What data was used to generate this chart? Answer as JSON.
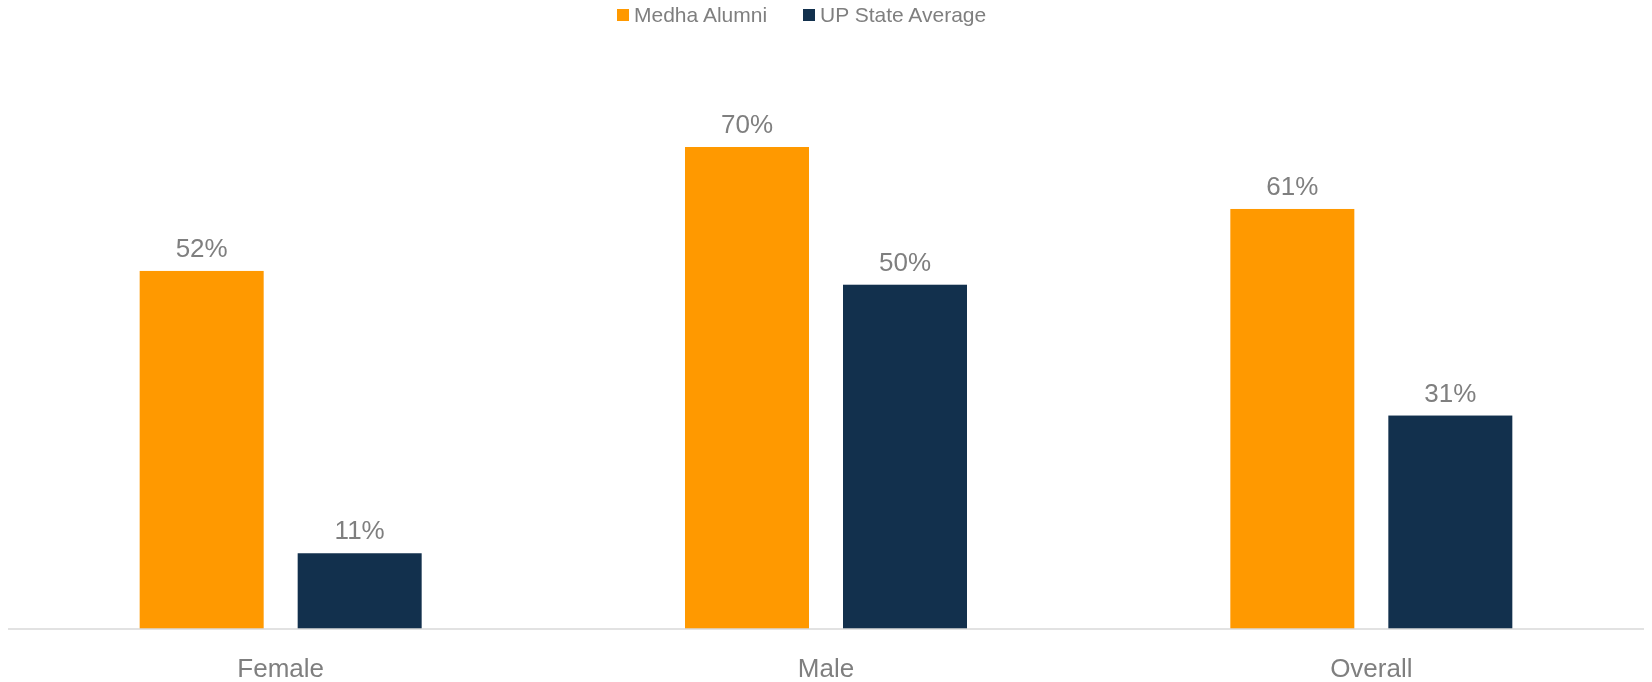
{
  "chart_data": {
    "type": "bar",
    "categories": [
      "Female",
      "Male",
      "Overall"
    ],
    "series": [
      {
        "name": "Medha Alumni",
        "color": "#ff9900",
        "values": [
          52,
          70,
          61
        ],
        "value_labels": [
          "52%",
          "70%",
          "61%"
        ]
      },
      {
        "name": "UP State Average",
        "color": "#12304d",
        "values": [
          11,
          50,
          31
        ],
        "value_labels": [
          "11%",
          "50%",
          "31%"
        ]
      }
    ],
    "legend": "top"
  }
}
